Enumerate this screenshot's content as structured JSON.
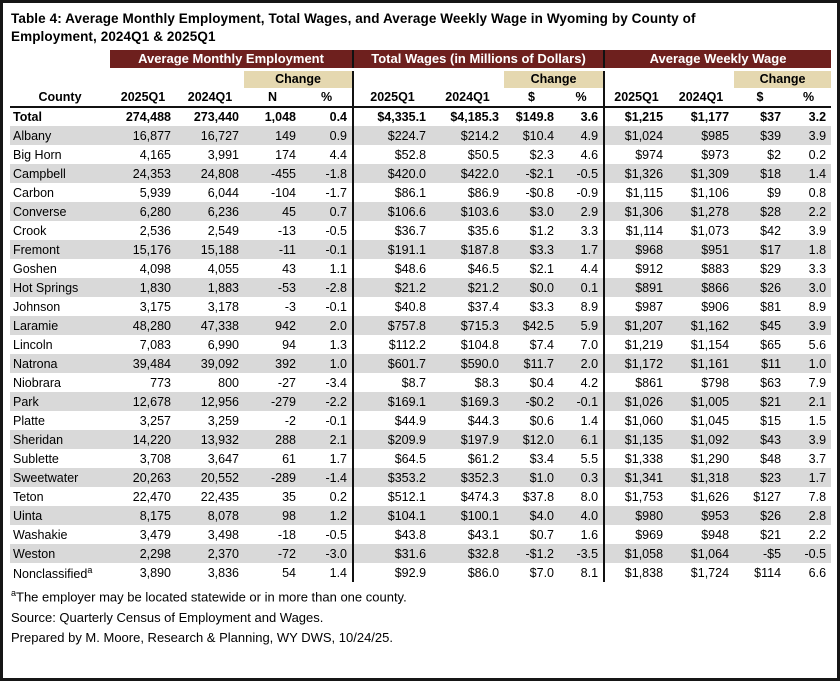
{
  "title": "Table 4: Average Monthly Employment, Total Wages, and Average Weekly Wage in Wyoming by County of Employment, 2024Q1 & 2025Q1",
  "colors": {
    "header_band": "#6e201e",
    "change_band": "#e5d8b0",
    "row_stripe": "#d9d9d9",
    "border": "#161616"
  },
  "table": {
    "county_header": "County",
    "sections": [
      {
        "label": "Average Monthly Employment",
        "change_label": "Change",
        "columns": [
          "2025Q1",
          "2024Q1",
          "N",
          "%"
        ]
      },
      {
        "label": "Total Wages (in Millions of Dollars)",
        "change_label": "Change",
        "columns": [
          "2025Q1",
          "2024Q1",
          "$",
          "%"
        ]
      },
      {
        "label": "Average Weekly Wage",
        "change_label": "Change",
        "columns": [
          "2025Q1",
          "2024Q1",
          "$",
          "%"
        ]
      }
    ],
    "rows": [
      {
        "county": "Total",
        "bold": true,
        "values": [
          "274,488",
          "273,440",
          "1,048",
          "0.4",
          "$4,335.1",
          "$4,185.3",
          "$149.8",
          "3.6",
          "$1,215",
          "$1,177",
          "$37",
          "3.2"
        ]
      },
      {
        "county": "Albany",
        "values": [
          "16,877",
          "16,727",
          "149",
          "0.9",
          "$224.7",
          "$214.2",
          "$10.4",
          "4.9",
          "$1,024",
          "$985",
          "$39",
          "3.9"
        ]
      },
      {
        "county": "Big Horn",
        "values": [
          "4,165",
          "3,991",
          "174",
          "4.4",
          "$52.8",
          "$50.5",
          "$2.3",
          "4.6",
          "$974",
          "$973",
          "$2",
          "0.2"
        ]
      },
      {
        "county": "Campbell",
        "values": [
          "24,353",
          "24,808",
          "-455",
          "-1.8",
          "$420.0",
          "$422.0",
          "-$2.1",
          "-0.5",
          "$1,326",
          "$1,309",
          "$18",
          "1.4"
        ]
      },
      {
        "county": "Carbon",
        "values": [
          "5,939",
          "6,044",
          "-104",
          "-1.7",
          "$86.1",
          "$86.9",
          "-$0.8",
          "-0.9",
          "$1,115",
          "$1,106",
          "$9",
          "0.8"
        ]
      },
      {
        "county": "Converse",
        "values": [
          "6,280",
          "6,236",
          "45",
          "0.7",
          "$106.6",
          "$103.6",
          "$3.0",
          "2.9",
          "$1,306",
          "$1,278",
          "$28",
          "2.2"
        ]
      },
      {
        "county": "Crook",
        "values": [
          "2,536",
          "2,549",
          "-13",
          "-0.5",
          "$36.7",
          "$35.6",
          "$1.2",
          "3.3",
          "$1,114",
          "$1,073",
          "$42",
          "3.9"
        ]
      },
      {
        "county": "Fremont",
        "values": [
          "15,176",
          "15,188",
          "-11",
          "-0.1",
          "$191.1",
          "$187.8",
          "$3.3",
          "1.7",
          "$968",
          "$951",
          "$17",
          "1.8"
        ]
      },
      {
        "county": "Goshen",
        "values": [
          "4,098",
          "4,055",
          "43",
          "1.1",
          "$48.6",
          "$46.5",
          "$2.1",
          "4.4",
          "$912",
          "$883",
          "$29",
          "3.3"
        ]
      },
      {
        "county": "Hot Springs",
        "values": [
          "1,830",
          "1,883",
          "-53",
          "-2.8",
          "$21.2",
          "$21.2",
          "$0.0",
          "0.1",
          "$891",
          "$866",
          "$26",
          "3.0"
        ]
      },
      {
        "county": "Johnson",
        "values": [
          "3,175",
          "3,178",
          "-3",
          "-0.1",
          "$40.8",
          "$37.4",
          "$3.3",
          "8.9",
          "$987",
          "$906",
          "$81",
          "8.9"
        ]
      },
      {
        "county": "Laramie",
        "values": [
          "48,280",
          "47,338",
          "942",
          "2.0",
          "$757.8",
          "$715.3",
          "$42.5",
          "5.9",
          "$1,207",
          "$1,162",
          "$45",
          "3.9"
        ]
      },
      {
        "county": "Lincoln",
        "values": [
          "7,083",
          "6,990",
          "94",
          "1.3",
          "$112.2",
          "$104.8",
          "$7.4",
          "7.0",
          "$1,219",
          "$1,154",
          "$65",
          "5.6"
        ]
      },
      {
        "county": "Natrona",
        "values": [
          "39,484",
          "39,092",
          "392",
          "1.0",
          "$601.7",
          "$590.0",
          "$11.7",
          "2.0",
          "$1,172",
          "$1,161",
          "$11",
          "1.0"
        ]
      },
      {
        "county": "Niobrara",
        "values": [
          "773",
          "800",
          "-27",
          "-3.4",
          "$8.7",
          "$8.3",
          "$0.4",
          "4.2",
          "$861",
          "$798",
          "$63",
          "7.9"
        ]
      },
      {
        "county": "Park",
        "values": [
          "12,678",
          "12,956",
          "-279",
          "-2.2",
          "$169.1",
          "$169.3",
          "-$0.2",
          "-0.1",
          "$1,026",
          "$1,005",
          "$21",
          "2.1"
        ]
      },
      {
        "county": "Platte",
        "values": [
          "3,257",
          "3,259",
          "-2",
          "-0.1",
          "$44.9",
          "$44.3",
          "$0.6",
          "1.4",
          "$1,060",
          "$1,045",
          "$15",
          "1.5"
        ]
      },
      {
        "county": "Sheridan",
        "values": [
          "14,220",
          "13,932",
          "288",
          "2.1",
          "$209.9",
          "$197.9",
          "$12.0",
          "6.1",
          "$1,135",
          "$1,092",
          "$43",
          "3.9"
        ]
      },
      {
        "county": "Sublette",
        "values": [
          "3,708",
          "3,647",
          "61",
          "1.7",
          "$64.5",
          "$61.2",
          "$3.4",
          "5.5",
          "$1,338",
          "$1,290",
          "$48",
          "3.7"
        ]
      },
      {
        "county": "Sweetwater",
        "values": [
          "20,263",
          "20,552",
          "-289",
          "-1.4",
          "$353.2",
          "$352.3",
          "$1.0",
          "0.3",
          "$1,341",
          "$1,318",
          "$23",
          "1.7"
        ]
      },
      {
        "county": "Teton",
        "values": [
          "22,470",
          "22,435",
          "35",
          "0.2",
          "$512.1",
          "$474.3",
          "$37.8",
          "8.0",
          "$1,753",
          "$1,626",
          "$127",
          "7.8"
        ]
      },
      {
        "county": "Uinta",
        "values": [
          "8,175",
          "8,078",
          "98",
          "1.2",
          "$104.1",
          "$100.1",
          "$4.0",
          "4.0",
          "$980",
          "$953",
          "$26",
          "2.8"
        ]
      },
      {
        "county": "Washakie",
        "values": [
          "3,479",
          "3,498",
          "-18",
          "-0.5",
          "$43.8",
          "$43.1",
          "$0.7",
          "1.6",
          "$969",
          "$948",
          "$21",
          "2.2"
        ]
      },
      {
        "county": "Weston",
        "values": [
          "2,298",
          "2,370",
          "-72",
          "-3.0",
          "$31.6",
          "$32.8",
          "-$1.2",
          "-3.5",
          "$1,058",
          "$1,064",
          "-$5",
          "-0.5"
        ]
      },
      {
        "county": "Nonclassified",
        "county_sup": "a",
        "values": [
          "3,890",
          "3,836",
          "54",
          "1.4",
          "$92.9",
          "$86.0",
          "$7.0",
          "8.1",
          "$1,838",
          "$1,724",
          "$114",
          "6.6"
        ]
      }
    ]
  },
  "footnotes": [
    {
      "sup": "a",
      "text": "The employer may be located statewide or in more than one county."
    },
    {
      "text": "Source: Quarterly Census of Employment and Wages."
    },
    {
      "text": "Prepared by M. Moore, Research & Planning, WY DWS, 10/24/25."
    }
  ]
}
